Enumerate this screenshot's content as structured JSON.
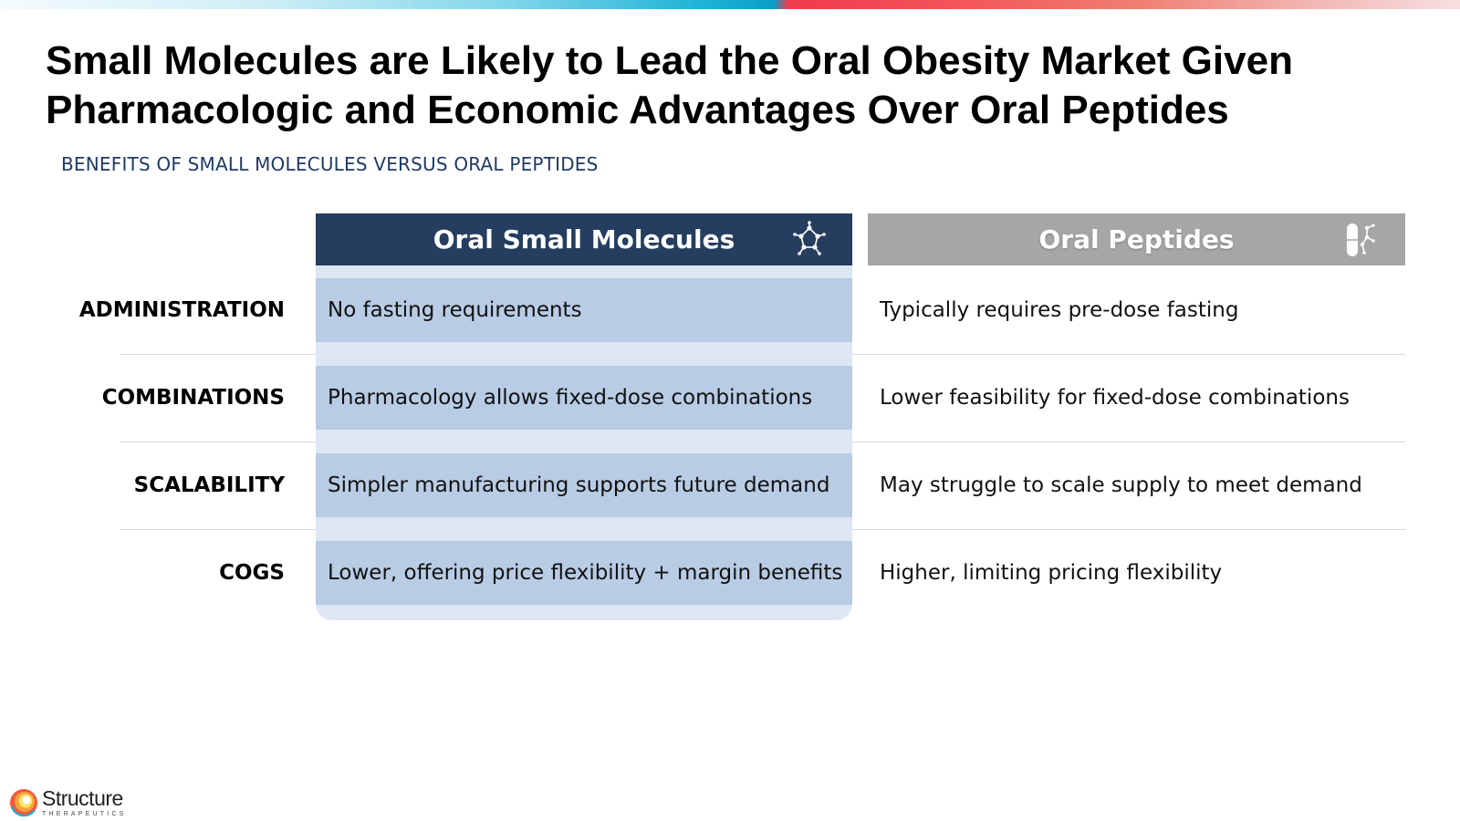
{
  "slide": {
    "title_line1": "Small Molecules are Likely to Lead the Oral Obesity Market Given",
    "title_line2": "Pharmacologic and Economic Advantages Over Oral Peptides",
    "subtitle": "BENEFITS OF SMALL MOLECULES VERSUS ORAL PEPTIDES"
  },
  "table": {
    "headers": {
      "small_molecules": "Oral Small Molecules",
      "small_molecules_icon": "molecule-icon",
      "peptides": "Oral Peptides",
      "peptides_icon": "capsule-peptide-icon"
    },
    "rows": [
      {
        "label": "ADMINISTRATION",
        "small_molecules": "No fasting requirements",
        "peptides": "Typically requires pre-dose fasting"
      },
      {
        "label": "COMBINATIONS",
        "small_molecules": "Pharmacology allows fixed-dose combinations",
        "peptides": "Lower feasibility for fixed-dose combinations"
      },
      {
        "label": "SCALABILITY",
        "small_molecules": "Simpler manufacturing supports future demand",
        "peptides": "May struggle to scale supply to meet demand"
      },
      {
        "label": "COGS",
        "small_molecules": "Lower, offering price flexibility + margin benefits",
        "peptides": "Higher, limiting pricing flexibility"
      }
    ]
  },
  "logo": {
    "name": "Structure",
    "sub": "THERAPEUTICS"
  },
  "colors": {
    "header_small_molecules": "#253d5e",
    "header_peptides": "#a6a6a6",
    "cell_small_molecules": "#b8cce5",
    "panel_small_molecules": "#dde6f3",
    "subtitle": "#1f3a64"
  }
}
